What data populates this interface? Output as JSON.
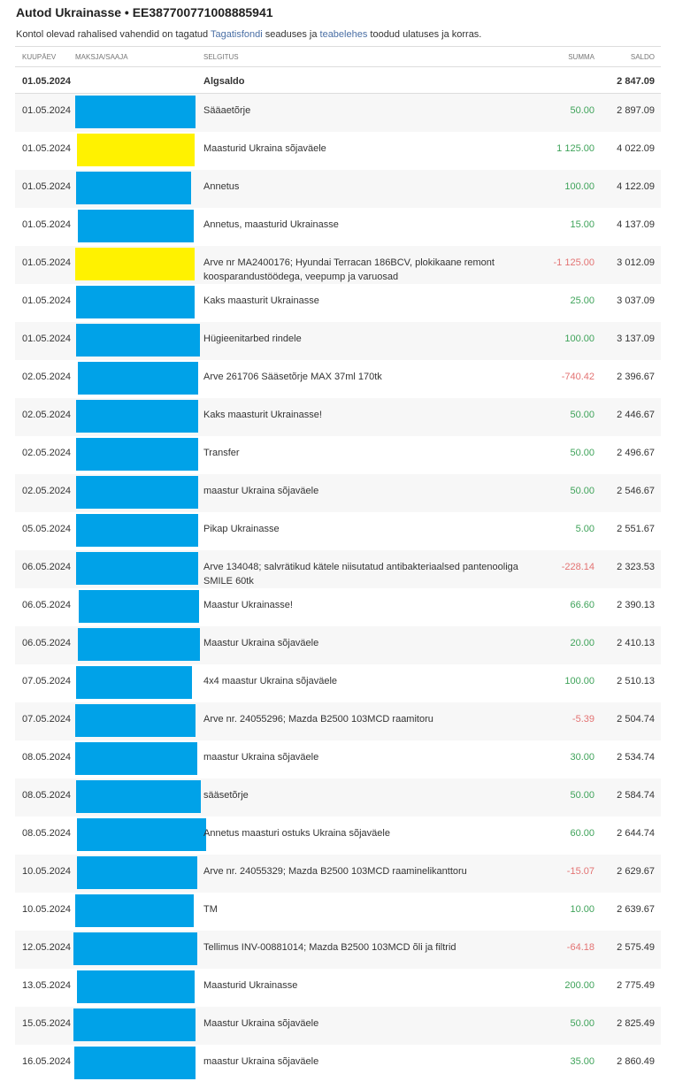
{
  "header": {
    "title": "Autod Ukrainasse • EE387700771008885941",
    "note_pre": "Kontol olevad rahalised vahendid on tagatud ",
    "link1": "Tagatisfondi",
    "note_mid": " seaduses ja ",
    "link2": "teabelehes",
    "note_post": " toodud ulatuses ja korras."
  },
  "columns": {
    "date": "KUUPÄEV",
    "party": "MAKSJA/SAAJA",
    "desc": "SELGITUS",
    "sum": "SUMMA",
    "balance": "SALDO"
  },
  "opening": {
    "date": "01.05.2024",
    "desc": "Algsaldo",
    "balance": "2 847.09"
  },
  "colors": {
    "redact_blue": "#00a2e8",
    "redact_yellow": "#fff200",
    "positive": "#3fa35a",
    "negative": "#e37373"
  },
  "rows": [
    {
      "date": "01.05.2024",
      "desc": "Sääaetõrje",
      "sum": "50.00",
      "balance": "2 897.09",
      "redact": "blue"
    },
    {
      "date": "01.05.2024",
      "desc": "Maasturid Ukraina sõjaväele",
      "sum": "1 125.00",
      "balance": "4 022.09",
      "redact": "yellow"
    },
    {
      "date": "01.05.2024",
      "desc": "Annetus",
      "sum": "100.00",
      "balance": "4 122.09",
      "redact": "blue"
    },
    {
      "date": "01.05.2024",
      "desc": "Annetus, maasturid Ukrainasse",
      "sum": "15.00",
      "balance": "4 137.09",
      "redact": "blue"
    },
    {
      "date": "01.05.2024",
      "desc": "Arve nr MA2400176; Hyundai Terracan 186BCV, plokikaane remont koosparandustöödega, veepump ja varuosad",
      "sum": "-1 125.00",
      "balance": "3 012.09",
      "redact": "yellow"
    },
    {
      "date": "01.05.2024",
      "desc": "Kaks maasturit Ukrainasse",
      "sum": "25.00",
      "balance": "3 037.09",
      "redact": "blue"
    },
    {
      "date": "01.05.2024",
      "desc": "Hügieenitarbed rindele",
      "sum": "100.00",
      "balance": "3 137.09",
      "redact": "blue"
    },
    {
      "date": "02.05.2024",
      "desc": "Arve 261706 Sääsetõrje MAX 37ml 170tk",
      "sum": "-740.42",
      "balance": "2 396.67",
      "redact": "blue"
    },
    {
      "date": "02.05.2024",
      "desc": "Kaks maasturit Ukrainasse!",
      "sum": "50.00",
      "balance": "2 446.67",
      "redact": "blue"
    },
    {
      "date": "02.05.2024",
      "desc": "Transfer",
      "sum": "50.00",
      "balance": "2 496.67",
      "redact": "blue"
    },
    {
      "date": "02.05.2024",
      "desc": "maastur Ukraina sõjaväele",
      "sum": "50.00",
      "balance": "2 546.67",
      "redact": "blue"
    },
    {
      "date": "05.05.2024",
      "desc": "Pikap Ukrainasse",
      "sum": "5.00",
      "balance": "2 551.67",
      "redact": "blue"
    },
    {
      "date": "06.05.2024",
      "desc": "Arve 134048; salvrätikud kätele niisutatud antibakteriaalsed pantenooliga SMILE 60tk",
      "sum": "-228.14",
      "balance": "2 323.53",
      "redact": "blue"
    },
    {
      "date": "06.05.2024",
      "desc": "Maastur Ukrainasse!",
      "sum": "66.60",
      "balance": "2 390.13",
      "redact": "blue"
    },
    {
      "date": "06.05.2024",
      "desc": "Maastur Ukraina sõjaväele",
      "sum": "20.00",
      "balance": "2 410.13",
      "redact": "blue"
    },
    {
      "date": "07.05.2024",
      "desc": "4x4 maastur Ukraina sõjaväele",
      "sum": "100.00",
      "balance": "2 510.13",
      "redact": "blue"
    },
    {
      "date": "07.05.2024",
      "desc": "Arve nr. 24055296; Mazda B2500 103MCD raamitoru",
      "sum": "-5.39",
      "balance": "2 504.74",
      "redact": "blue"
    },
    {
      "date": "08.05.2024",
      "desc": "maastur Ukraina sõjaväele",
      "sum": "30.00",
      "balance": "2 534.74",
      "redact": "blue"
    },
    {
      "date": "08.05.2024",
      "desc": "sääsetõrje",
      "sum": "50.00",
      "balance": "2 584.74",
      "redact": "blue"
    },
    {
      "date": "08.05.2024",
      "desc": "Annetus maasturi ostuks Ukraina sõjaväele",
      "sum": "60.00",
      "balance": "2 644.74",
      "redact": "blue"
    },
    {
      "date": "10.05.2024",
      "desc": "Arve nr. 24055329; Mazda B2500 103MCD raaminelikanttoru",
      "sum": "-15.07",
      "balance": "2 629.67",
      "redact": "blue"
    },
    {
      "date": "10.05.2024",
      "desc": "TM",
      "sum": "10.00",
      "balance": "2 639.67",
      "redact": "blue"
    },
    {
      "date": "12.05.2024",
      "desc": "Tellimus INV-00881014; Mazda B2500 103MCD õli ja filtrid",
      "sum": "-64.18",
      "balance": "2 575.49",
      "redact": "blue"
    },
    {
      "date": "13.05.2024",
      "desc": "Maasturid Ukrainasse",
      "sum": "200.00",
      "balance": "2 775.49",
      "redact": "blue"
    },
    {
      "date": "15.05.2024",
      "desc": "Maastur Ukraina sõjaväele",
      "sum": "50.00",
      "balance": "2 825.49",
      "redact": "blue"
    },
    {
      "date": "16.05.2024",
      "desc": "maastur Ukraina sõjaväele",
      "sum": "35.00",
      "balance": "2 860.49",
      "redact": "blue"
    }
  ]
}
